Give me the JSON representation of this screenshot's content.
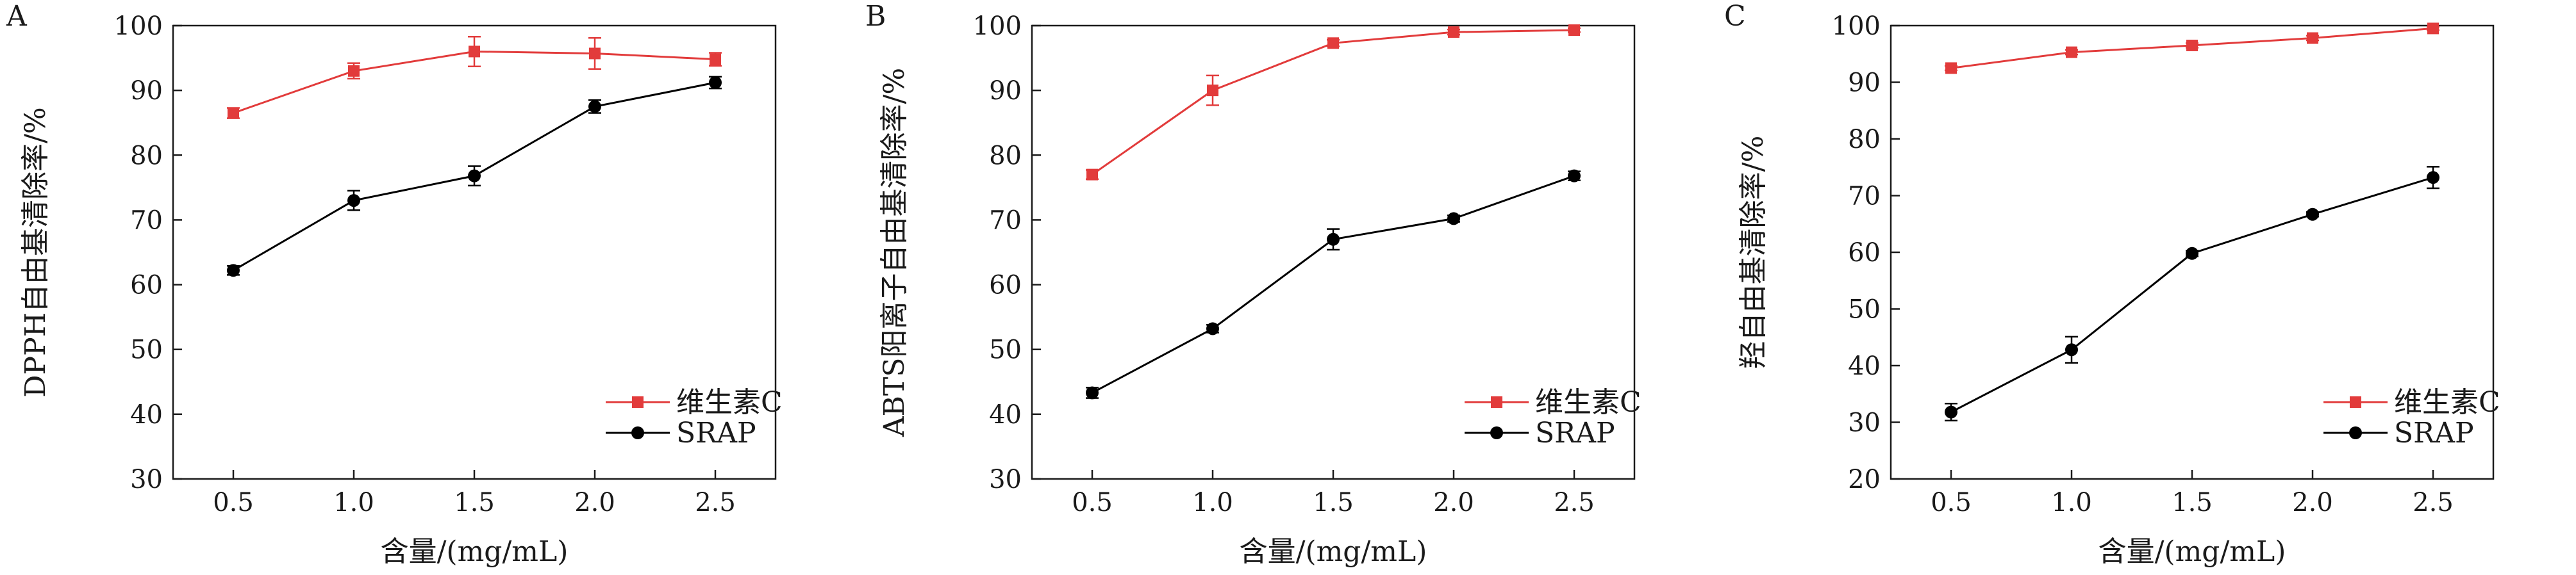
{
  "chart_data": [
    {
      "panel": "A",
      "type": "line",
      "title": "",
      "xlabel": "含量/(mg/mL)",
      "ylabel": "DPPH自由基清除率/%",
      "x": [
        0.5,
        1.0,
        1.5,
        2.0,
        2.5
      ],
      "x_ticks": [
        "0.5",
        "1.0",
        "1.5",
        "2.0",
        "2.5"
      ],
      "ylim": [
        30,
        100
      ],
      "y_ticks": [
        "30",
        "40",
        "50",
        "60",
        "70",
        "80",
        "90",
        "100"
      ],
      "legend_position": "bottom-right",
      "grid": false,
      "series": [
        {
          "name": "维生素C",
          "color": "#e23b3b",
          "marker": "square",
          "values": [
            86.5,
            93.0,
            96.0,
            95.7,
            94.8
          ],
          "errors": [
            0.8,
            1.2,
            2.3,
            2.4,
            1.0
          ]
        },
        {
          "name": "SRAP",
          "color": "#000000",
          "marker": "circle",
          "values": [
            62.2,
            73.0,
            76.8,
            87.5,
            91.2
          ],
          "errors": [
            0.7,
            1.5,
            1.5,
            1.0,
            0.9
          ]
        }
      ]
    },
    {
      "panel": "B",
      "type": "line",
      "title": "",
      "xlabel": "含量/(mg/mL)",
      "ylabel": "ABTS阳离子自由基清除率/%",
      "x": [
        0.5,
        1.0,
        1.5,
        2.0,
        2.5
      ],
      "x_ticks": [
        "0.5",
        "1.0",
        "1.5",
        "2.0",
        "2.5"
      ],
      "ylim": [
        30,
        100
      ],
      "y_ticks": [
        "30",
        "40",
        "50",
        "60",
        "70",
        "80",
        "90",
        "100"
      ],
      "legend_position": "bottom-right",
      "grid": false,
      "series": [
        {
          "name": "维生素C",
          "color": "#e23b3b",
          "marker": "square",
          "values": [
            77.0,
            90.0,
            97.3,
            99.0,
            99.3
          ],
          "errors": [
            0.7,
            2.3,
            0.5,
            0.4,
            0.3
          ]
        },
        {
          "name": "SRAP",
          "color": "#000000",
          "marker": "circle",
          "values": [
            43.3,
            53.2,
            67.0,
            70.2,
            76.8
          ],
          "errors": [
            0.8,
            0.6,
            1.6,
            0.5,
            0.7
          ]
        }
      ]
    },
    {
      "panel": "C",
      "type": "line",
      "title": "",
      "xlabel": "含量/(mg/mL)",
      "ylabel": "羟自由基清除率/%",
      "x": [
        0.5,
        1.0,
        1.5,
        2.0,
        2.5
      ],
      "x_ticks": [
        "0.5",
        "1.0",
        "1.5",
        "2.0",
        "2.5"
      ],
      "ylim": [
        20,
        100
      ],
      "y_ticks": [
        "20",
        "30",
        "40",
        "50",
        "60",
        "70",
        "80",
        "90",
        "100"
      ],
      "legend_position": "bottom-right",
      "grid": false,
      "series": [
        {
          "name": "维生素C",
          "color": "#e23b3b",
          "marker": "square",
          "values": [
            92.5,
            95.3,
            96.5,
            97.8,
            99.5
          ],
          "errors": [
            0.4,
            0.4,
            0.4,
            0.4,
            0.3
          ]
        },
        {
          "name": "SRAP",
          "color": "#000000",
          "marker": "circle",
          "values": [
            31.8,
            42.8,
            59.8,
            66.7,
            73.2
          ],
          "errors": [
            1.5,
            2.3,
            0.5,
            0.4,
            1.9
          ]
        }
      ]
    }
  ]
}
